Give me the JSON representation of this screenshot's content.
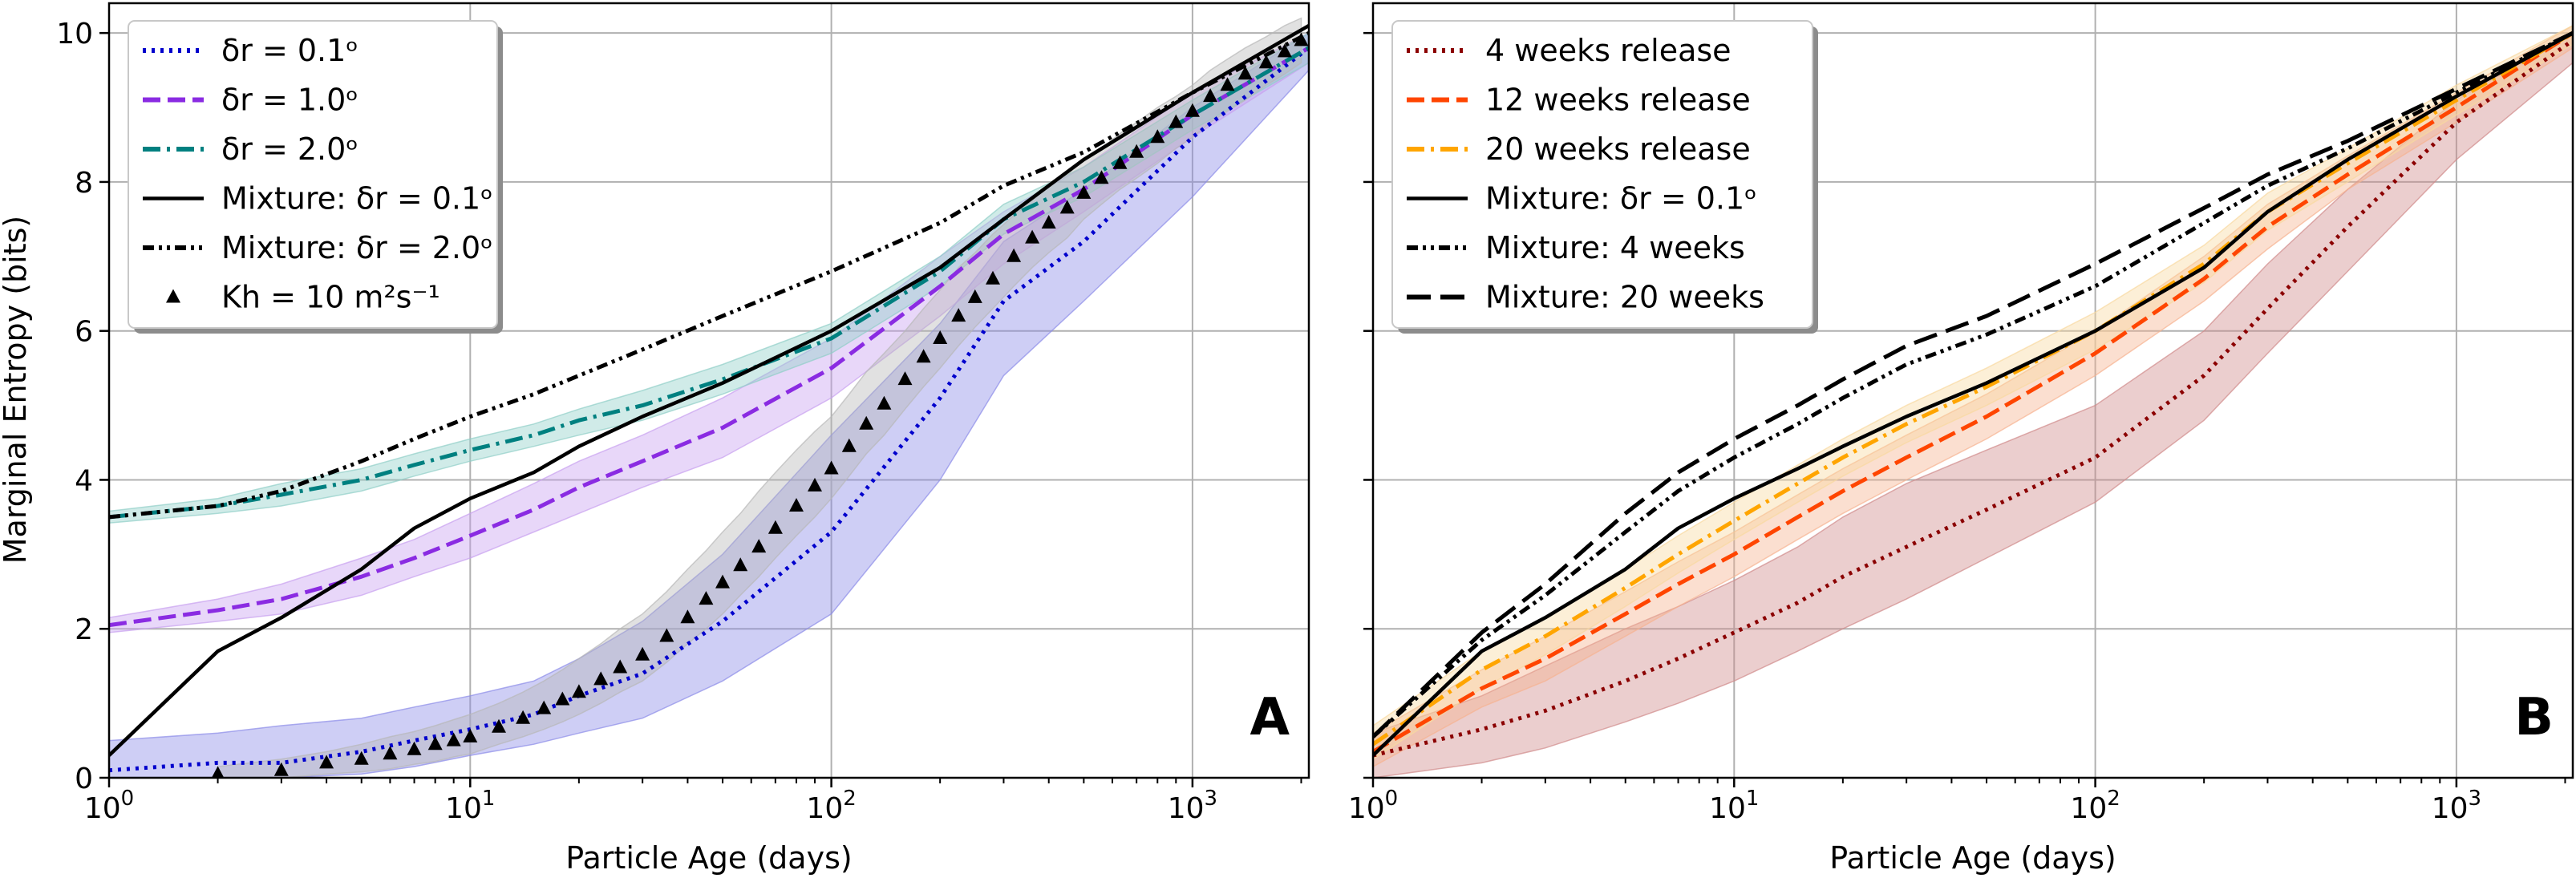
{
  "figure": {
    "ylabel": "Marginal Entropy (bits)",
    "xlabel": "Particle Age (days)"
  },
  "chart_data": [
    {
      "type": "line",
      "panel_label": "A",
      "xlabel": "Particle Age (days)",
      "ylabel": "Marginal Entropy (bits)",
      "xscale": "log",
      "xlim": [
        1,
        2100
      ],
      "ylim": [
        0,
        10.4
      ],
      "xticks": [
        {
          "v": 1,
          "b": "10",
          "e": "0"
        },
        {
          "v": 10,
          "b": "10",
          "e": "1"
        },
        {
          "v": 100,
          "b": "10",
          "e": "2"
        },
        {
          "v": 1000,
          "b": "10",
          "e": "3"
        }
      ],
      "yticks": [
        0,
        2,
        4,
        6,
        8,
        10
      ],
      "grid": true,
      "legend_position": "upper-left",
      "series": [
        {
          "name": "δr = 0.1ᵒ",
          "color": "#0000cc",
          "dash": "dotted",
          "band_color": "#8b8be8",
          "x": [
            1,
            2,
            3,
            5,
            7,
            10,
            15,
            20,
            30,
            50,
            100,
            200,
            300,
            500,
            1000,
            2100
          ],
          "y": [
            0.1,
            0.2,
            0.2,
            0.35,
            0.5,
            0.65,
            0.85,
            1.1,
            1.4,
            2.1,
            3.3,
            5.1,
            6.4,
            7.2,
            8.6,
            9.8
          ],
          "lower": [
            0,
            0,
            0,
            0.05,
            0.15,
            0.3,
            0.45,
            0.6,
            0.8,
            1.3,
            2.2,
            4.0,
            5.4,
            6.4,
            7.8,
            9.5
          ],
          "upper": [
            0.5,
            0.6,
            0.7,
            0.8,
            0.95,
            1.1,
            1.3,
            1.6,
            2.1,
            3.0,
            4.6,
            6.1,
            7.2,
            7.9,
            9.0,
            10.0
          ]
        },
        {
          "name": "δr = 1.0ᵒ",
          "color": "#8a2be2",
          "dash": "dashed",
          "band_color": "#c8a0f0",
          "x": [
            1,
            2,
            3,
            5,
            7,
            10,
            15,
            20,
            30,
            50,
            100,
            200,
            300,
            500,
            1000,
            2100
          ],
          "y": [
            2.05,
            2.25,
            2.4,
            2.7,
            2.95,
            3.25,
            3.6,
            3.9,
            4.25,
            4.7,
            5.5,
            6.6,
            7.3,
            7.9,
            8.9,
            9.8
          ],
          "lower": [
            1.95,
            2.1,
            2.2,
            2.45,
            2.7,
            2.95,
            3.3,
            3.55,
            3.9,
            4.3,
            5.1,
            6.2,
            6.9,
            7.6,
            8.6,
            9.6
          ],
          "upper": [
            2.15,
            2.4,
            2.6,
            2.95,
            3.2,
            3.55,
            3.95,
            4.25,
            4.6,
            5.1,
            5.9,
            7.0,
            7.6,
            8.2,
            9.2,
            10.0
          ]
        },
        {
          "name": "δr = 2.0ᵒ",
          "color": "#008080",
          "dash": "dashdot",
          "band_color": "#90cfc8",
          "x": [
            1,
            2,
            3,
            5,
            7,
            10,
            15,
            20,
            30,
            50,
            100,
            200,
            300,
            500,
            1000,
            2100
          ],
          "y": [
            3.5,
            3.65,
            3.8,
            4.0,
            4.2,
            4.4,
            4.6,
            4.8,
            5.0,
            5.35,
            5.9,
            6.8,
            7.5,
            8.0,
            8.9,
            9.8
          ],
          "lower": [
            3.42,
            3.55,
            3.65,
            3.85,
            4.05,
            4.25,
            4.45,
            4.6,
            4.8,
            5.15,
            5.7,
            6.6,
            7.3,
            7.8,
            8.7,
            9.6
          ],
          "upper": [
            3.58,
            3.75,
            3.95,
            4.15,
            4.35,
            4.55,
            4.75,
            4.95,
            5.2,
            5.55,
            6.1,
            7.0,
            7.7,
            8.2,
            9.1,
            10.0
          ]
        },
        {
          "name": "Mixture: δr = 0.1ᵒ",
          "color": "#000000",
          "dash": "solid",
          "x": [
            1,
            2,
            3,
            5,
            7,
            10,
            15,
            20,
            30,
            50,
            100,
            200,
            300,
            500,
            1000,
            2100
          ],
          "y": [
            0.3,
            1.7,
            2.15,
            2.8,
            3.35,
            3.75,
            4.1,
            4.45,
            4.85,
            5.3,
            6.0,
            6.85,
            7.5,
            8.3,
            9.2,
            10.1
          ]
        },
        {
          "name": "Mixture: δr = 2.0ᵒ",
          "color": "#000000",
          "dash": "dashdotdot",
          "x": [
            1,
            2,
            3,
            5,
            7,
            10,
            15,
            20,
            30,
            50,
            100,
            200,
            300,
            500,
            1000,
            2100
          ],
          "y": [
            3.5,
            3.65,
            3.85,
            4.25,
            4.55,
            4.85,
            5.15,
            5.4,
            5.75,
            6.2,
            6.8,
            7.45,
            7.95,
            8.4,
            9.2,
            10.0
          ]
        },
        {
          "name": "Kh = 10 m²s⁻¹",
          "color": "#000000",
          "dash": "markers",
          "band_color": "#b8b8b8",
          "x": [
            2,
            3,
            4,
            5,
            6,
            7,
            8,
            9,
            10,
            12,
            14,
            16,
            18,
            20,
            23,
            26,
            30,
            35,
            40,
            45,
            50,
            56,
            63,
            70,
            80,
            90,
            100,
            112,
            125,
            140,
            160,
            180,
            200,
            225,
            250,
            280,
            320,
            360,
            400,
            450,
            500,
            560,
            630,
            700,
            800,
            900,
            1000,
            1120,
            1250,
            1400,
            1600,
            1800,
            2000
          ],
          "y": [
            0.05,
            0.1,
            0.2,
            0.25,
            0.32,
            0.38,
            0.45,
            0.5,
            0.55,
            0.68,
            0.8,
            0.93,
            1.05,
            1.15,
            1.32,
            1.48,
            1.65,
            1.9,
            2.15,
            2.4,
            2.62,
            2.85,
            3.1,
            3.35,
            3.65,
            3.92,
            4.15,
            4.45,
            4.75,
            5.02,
            5.35,
            5.65,
            5.9,
            6.2,
            6.45,
            6.7,
            7.0,
            7.25,
            7.45,
            7.65,
            7.85,
            8.05,
            8.25,
            8.4,
            8.6,
            8.8,
            8.95,
            9.15,
            9.3,
            9.45,
            9.6,
            9.75,
            9.9
          ],
          "lower": [
            0,
            0,
            0.05,
            0.08,
            0.12,
            0.18,
            0.22,
            0.28,
            0.32,
            0.45,
            0.55,
            0.65,
            0.75,
            0.85,
            1.0,
            1.15,
            1.3,
            1.55,
            1.8,
            2.0,
            2.2,
            2.45,
            2.7,
            2.95,
            3.25,
            3.5,
            3.75,
            4.05,
            4.35,
            4.6,
            4.95,
            5.25,
            5.5,
            5.8,
            6.05,
            6.3,
            6.6,
            6.85,
            7.05,
            7.25,
            7.5,
            7.7,
            7.9,
            8.05,
            8.25,
            8.45,
            8.6,
            8.8,
            8.95,
            9.1,
            9.3,
            9.45,
            9.6
          ],
          "upper": [
            0.15,
            0.25,
            0.35,
            0.45,
            0.55,
            0.62,
            0.7,
            0.78,
            0.85,
            1.0,
            1.15,
            1.3,
            1.45,
            1.6,
            1.8,
            2.0,
            2.2,
            2.5,
            2.8,
            3.05,
            3.3,
            3.55,
            3.85,
            4.1,
            4.4,
            4.65,
            4.85,
            5.15,
            5.45,
            5.7,
            6.0,
            6.3,
            6.55,
            6.85,
            7.05,
            7.3,
            7.55,
            7.75,
            7.95,
            8.1,
            8.3,
            8.45,
            8.65,
            8.8,
            9.0,
            9.15,
            9.3,
            9.5,
            9.65,
            9.8,
            9.95,
            10.1,
            10.2
          ]
        }
      ]
    },
    {
      "type": "line",
      "panel_label": "B",
      "xlabel": "Particle Age (days)",
      "xscale": "log",
      "xlim": [
        1,
        2100
      ],
      "ylim": [
        0,
        10.4
      ],
      "xticks": [
        {
          "v": 1,
          "b": "10",
          "e": "0"
        },
        {
          "v": 10,
          "b": "10",
          "e": "1"
        },
        {
          "v": 100,
          "b": "10",
          "e": "2"
        },
        {
          "v": 1000,
          "b": "10",
          "e": "3"
        }
      ],
      "yticks": [
        0,
        2,
        4,
        6,
        8,
        10
      ],
      "grid": true,
      "legend_position": "upper-left",
      "series": [
        {
          "name": "4 weeks release",
          "color": "#8b0000",
          "dash": "dotted",
          "band_color": "#d08a8a",
          "x": [
            1,
            2,
            3,
            5,
            7,
            10,
            15,
            20,
            30,
            50,
            100,
            200,
            300,
            500,
            1000,
            2100
          ],
          "y": [
            0.3,
            0.65,
            0.9,
            1.3,
            1.6,
            1.95,
            2.35,
            2.7,
            3.1,
            3.6,
            4.3,
            5.4,
            6.3,
            7.4,
            8.8,
            9.9
          ],
          "lower": [
            0,
            0.2,
            0.4,
            0.75,
            1.0,
            1.3,
            1.7,
            2.0,
            2.4,
            2.95,
            3.7,
            4.8,
            5.7,
            6.8,
            8.3,
            9.6
          ],
          "upper": [
            0.6,
            1.1,
            1.5,
            2.0,
            2.3,
            2.65,
            3.1,
            3.5,
            3.95,
            4.4,
            5.0,
            6.0,
            6.9,
            7.9,
            9.1,
            10.0
          ]
        },
        {
          "name": "12 weeks release",
          "color": "#ff4500",
          "dash": "dashed",
          "band_color": "#f6b290",
          "x": [
            1,
            2,
            3,
            5,
            7,
            10,
            15,
            20,
            30,
            50,
            100,
            200,
            300,
            500,
            1000,
            2100
          ],
          "y": [
            0.35,
            1.2,
            1.6,
            2.2,
            2.6,
            3.0,
            3.5,
            3.85,
            4.3,
            4.85,
            5.7,
            6.7,
            7.4,
            8.1,
            9.0,
            10.0
          ],
          "lower": [
            0.15,
            0.95,
            1.3,
            1.9,
            2.3,
            2.7,
            3.2,
            3.55,
            4.0,
            4.55,
            5.4,
            6.4,
            7.1,
            7.9,
            8.8,
            9.8
          ],
          "upper": [
            0.6,
            1.45,
            1.9,
            2.5,
            2.9,
            3.3,
            3.8,
            4.15,
            4.6,
            5.15,
            6.0,
            7.0,
            7.7,
            8.35,
            9.2,
            10.1
          ]
        },
        {
          "name": "20 weeks release",
          "color": "#ffa500",
          "dash": "dashdot",
          "band_color": "#f8d9a0",
          "x": [
            1,
            2,
            3,
            5,
            7,
            10,
            15,
            20,
            30,
            50,
            100,
            200,
            300,
            500,
            1000,
            2100
          ],
          "y": [
            0.45,
            1.45,
            1.9,
            2.55,
            3.0,
            3.45,
            3.95,
            4.3,
            4.75,
            5.25,
            6.0,
            6.9,
            7.6,
            8.25,
            9.1,
            10.0
          ],
          "lower": [
            0.25,
            1.2,
            1.65,
            2.3,
            2.75,
            3.2,
            3.7,
            4.05,
            4.5,
            5.0,
            5.75,
            6.65,
            7.35,
            8.0,
            8.9,
            9.85
          ],
          "upper": [
            0.7,
            1.7,
            2.15,
            2.8,
            3.25,
            3.7,
            4.2,
            4.55,
            5.0,
            5.5,
            6.25,
            7.15,
            7.85,
            8.45,
            9.3,
            10.1
          ]
        },
        {
          "name": "Mixture: δr = 0.1ᵒ",
          "color": "#000000",
          "dash": "solid",
          "x": [
            1,
            2,
            3,
            5,
            7,
            10,
            15,
            20,
            30,
            50,
            100,
            200,
            300,
            500,
            1000,
            2100
          ],
          "y": [
            0.3,
            1.7,
            2.15,
            2.8,
            3.35,
            3.75,
            4.15,
            4.45,
            4.85,
            5.3,
            6.0,
            6.85,
            7.6,
            8.3,
            9.15,
            10.0
          ]
        },
        {
          "name": "Mixture: 4 weeks",
          "color": "#000000",
          "dash": "dashdotdot",
          "x": [
            1,
            2,
            3,
            5,
            7,
            10,
            15,
            20,
            30,
            50,
            100,
            200,
            300,
            500,
            1000,
            2100
          ],
          "y": [
            0.55,
            1.85,
            2.45,
            3.3,
            3.85,
            4.3,
            4.75,
            5.1,
            5.55,
            5.95,
            6.6,
            7.45,
            7.95,
            8.45,
            9.2,
            10.0
          ]
        },
        {
          "name": "Mixture: 20 weeks",
          "color": "#000000",
          "dash": "longdash",
          "x": [
            1,
            2,
            3,
            5,
            7,
            10,
            15,
            20,
            30,
            50,
            100,
            200,
            300,
            500,
            1000,
            2100
          ],
          "y": [
            0.55,
            1.95,
            2.6,
            3.55,
            4.1,
            4.55,
            5.0,
            5.35,
            5.8,
            6.2,
            6.9,
            7.65,
            8.1,
            8.55,
            9.25,
            10.0
          ]
        }
      ]
    }
  ]
}
